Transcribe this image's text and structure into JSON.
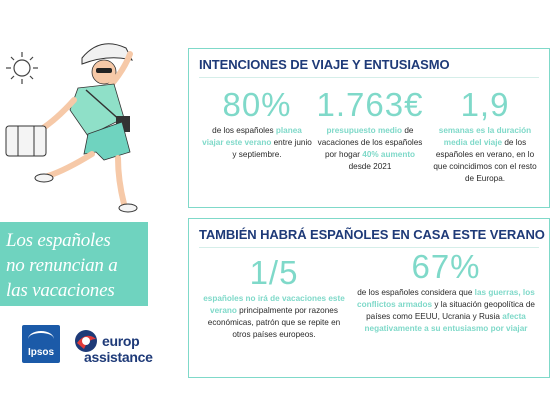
{
  "headline": {
    "line1": "Los españoles",
    "line2": "no renuncian a",
    "line3": "las vacaciones"
  },
  "logos": {
    "ipsos": "Ipsos",
    "europ_line1": "europ",
    "europ_line2": "assistance"
  },
  "section1": {
    "title": "INTENCIONES DE VIAJE Y ENTUSIASMO",
    "stats": [
      {
        "value": "80%",
        "pre": "de los españoles ",
        "highlight": "planea viajar este verano",
        "post": " entre junio y septiembre."
      },
      {
        "value": "1.763€",
        "highlight": "presupuesto medio",
        "mid": " de vacaciones de los españoles por hogar ",
        "highlight2": "40% aumento",
        "post": " desde 2021"
      },
      {
        "value": "1,9",
        "highlight": "semanas es la duración media del viaje",
        "post": " de los españoles en verano, en lo que coincidimos con el resto de Europa."
      }
    ]
  },
  "section2": {
    "title": "TAMBIÉN HABRÁ ESPAÑOLES EN CASA ESTE VERANO",
    "stats": [
      {
        "value": "1/5",
        "highlight": "españoles no irá de vacaciones este verano",
        "post": " principalmente por razones económicas, patrón que se repite en otros países europeos."
      },
      {
        "value": "67%",
        "pre": "de los españoles considera que ",
        "highlight": "las guerras, los conflictos armados",
        "mid": " y la situación geopolítica de países como EEUU, Ucrania y Rusia ",
        "highlight2": "afecta negativamente a su entusiasmo por viajar"
      }
    ]
  },
  "colors": {
    "accent": "#7fd9c9",
    "headline_bg": "#6fd3bf",
    "title": "#1e3a78",
    "ipsos": "#1b5aa8"
  }
}
